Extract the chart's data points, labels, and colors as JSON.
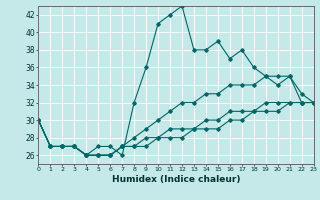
{
  "xlabel": "Humidex (Indice chaleur)",
  "background_color": "#c5e8e8",
  "line_color": "#006666",
  "xlim": [
    0,
    23
  ],
  "ylim": [
    25,
    43
  ],
  "yticks": [
    26,
    28,
    30,
    32,
    34,
    36,
    38,
    40,
    42
  ],
  "xticks": [
    0,
    1,
    2,
    3,
    4,
    5,
    6,
    7,
    8,
    9,
    10,
    11,
    12,
    13,
    14,
    15,
    16,
    17,
    18,
    19,
    20,
    21,
    22,
    23
  ],
  "series": [
    [
      30,
      27,
      27,
      27,
      26,
      27,
      27,
      26,
      32,
      36,
      41,
      42,
      43,
      38,
      38,
      39,
      37,
      38,
      36,
      35,
      34,
      35,
      33,
      32
    ],
    [
      30,
      27,
      27,
      27,
      26,
      26,
      26,
      27,
      28,
      29,
      30,
      31,
      32,
      32,
      33,
      33,
      34,
      34,
      34,
      35,
      35,
      35,
      32,
      32
    ],
    [
      30,
      27,
      27,
      27,
      26,
      26,
      26,
      27,
      27,
      28,
      28,
      29,
      29,
      29,
      30,
      30,
      31,
      31,
      31,
      32,
      32,
      32,
      32,
      32
    ],
    [
      30,
      27,
      27,
      27,
      26,
      26,
      26,
      27,
      27,
      27,
      28,
      28,
      28,
      29,
      29,
      29,
      30,
      30,
      31,
      31,
      31,
      32,
      32,
      32
    ]
  ]
}
